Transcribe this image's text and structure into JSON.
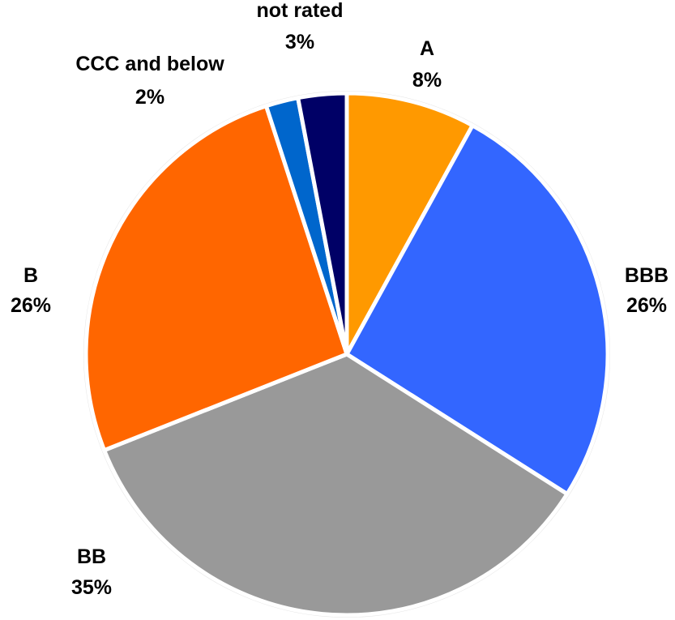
{
  "chart_data": {
    "type": "pie",
    "title": "",
    "start": "12 o'clock",
    "direction": "clockwise",
    "slices": [
      {
        "label": "A",
        "value": 8,
        "display": "8%",
        "color": "#FF9900"
      },
      {
        "label": "BBB",
        "value": 26,
        "display": "26%",
        "color": "#3366FF"
      },
      {
        "label": "BB",
        "value": 35,
        "display": "35%",
        "color": "#999999"
      },
      {
        "label": "B",
        "value": 26,
        "display": "26%",
        "color": "#FF6600"
      },
      {
        "label": "CCC and below",
        "value": 2,
        "display": "2%",
        "color": "#0066CC"
      },
      {
        "label": "not rated",
        "value": 3,
        "display": "3%",
        "color": "#000066"
      }
    ]
  }
}
